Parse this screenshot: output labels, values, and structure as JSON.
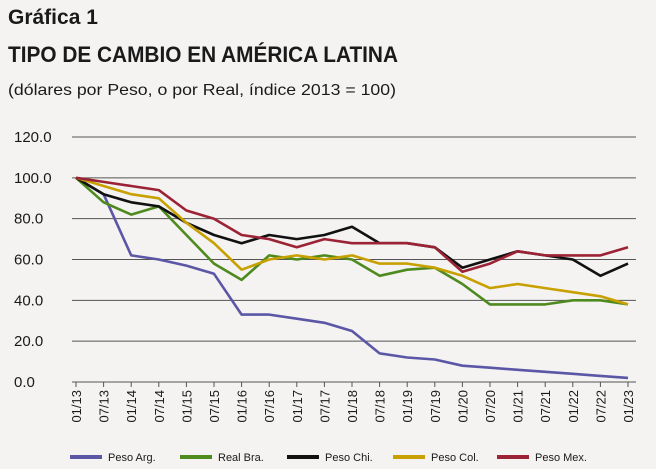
{
  "chart_data": {
    "type": "line",
    "title": "Gráfica 1",
    "heading": "TIPO DE CAMBIO EN AMÉRICA LATINA",
    "subtitle": "(dólares por Peso, o por Real, índice 2013 = 100)",
    "categories": [
      "01/13",
      "07/13",
      "01/14",
      "07/14",
      "01/15",
      "07/15",
      "01/16",
      "07/16",
      "01/17",
      "07/17",
      "01/18",
      "07/18",
      "01/19",
      "07/19",
      "01/20",
      "07/20",
      "01/21",
      "07/21",
      "01/22",
      "07/22",
      "01/23"
    ],
    "series": [
      {
        "name": "Peso Arg.",
        "color": "#5b57a6",
        "values": [
          100,
          92,
          62,
          60,
          57,
          53,
          33,
          33,
          31,
          29,
          25,
          14,
          12,
          11,
          8,
          7,
          6,
          5,
          4,
          3,
          2
        ]
      },
      {
        "name": "Real Bra.",
        "color": "#4f8a1e",
        "values": [
          100,
          88,
          82,
          86,
          72,
          58,
          50,
          62,
          60,
          62,
          60,
          52,
          55,
          56,
          48,
          38,
          38,
          38,
          40,
          40,
          38
        ]
      },
      {
        "name": "Peso Chi.",
        "color": "#111111",
        "values": [
          100,
          92,
          88,
          86,
          78,
          72,
          68,
          72,
          70,
          72,
          76,
          68,
          68,
          66,
          56,
          60,
          64,
          62,
          60,
          52,
          58
        ]
      },
      {
        "name": "Peso Col.",
        "color": "#c8a000",
        "values": [
          100,
          96,
          92,
          90,
          78,
          68,
          55,
          60,
          62,
          60,
          62,
          58,
          58,
          56,
          52,
          46,
          48,
          46,
          44,
          42,
          38
        ]
      },
      {
        "name": "Peso Mex.",
        "color": "#9b2335",
        "values": [
          100,
          98,
          96,
          94,
          84,
          80,
          72,
          70,
          66,
          70,
          68,
          68,
          68,
          66,
          54,
          58,
          64,
          62,
          62,
          62,
          66
        ]
      }
    ],
    "ylim": [
      0,
      120
    ],
    "yticks": [
      {
        "value": 0,
        "label": "0.0"
      },
      {
        "value": 20,
        "label": "20.0"
      },
      {
        "value": 40,
        "label": "40.0"
      },
      {
        "value": 60,
        "label": "60.0"
      },
      {
        "value": 80,
        "label": "80.0"
      },
      {
        "value": 100,
        "label": "100.0"
      },
      {
        "value": 120,
        "label": "120.0"
      }
    ],
    "grid": true
  }
}
